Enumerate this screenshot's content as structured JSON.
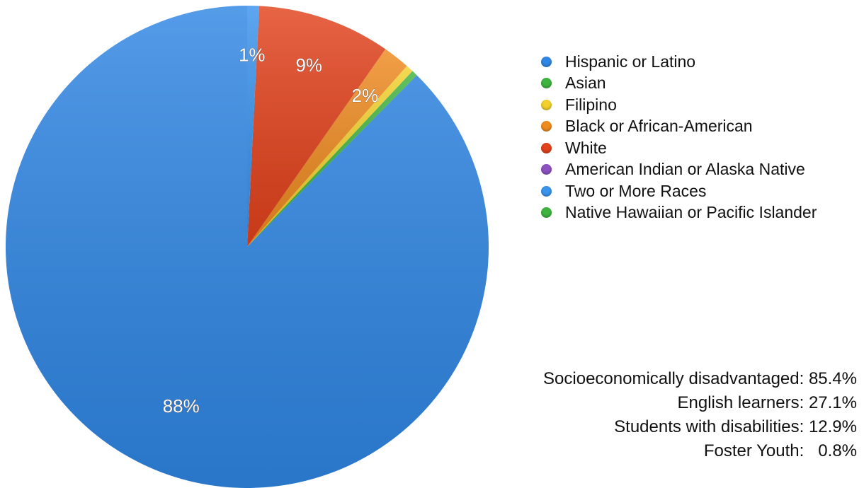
{
  "chart_data": {
    "type": "pie",
    "slices": [
      {
        "name": "Hispanic or Latino",
        "value": 87.6,
        "label": "88%",
        "color": "#2f86e4"
      },
      {
        "name": "Asian",
        "value": 0.4,
        "label": "",
        "color": "#3fb33f"
      },
      {
        "name": "Filipino",
        "value": 0.5,
        "label": "",
        "color": "#f1d02c"
      },
      {
        "name": "Black or African-American",
        "value": 1.8,
        "label": "2%",
        "color": "#ee8a20"
      },
      {
        "name": "White",
        "value": 8.9,
        "label": "9%",
        "color": "#e2421c"
      },
      {
        "name": "American Indian or Alaska Native",
        "value": 0.0,
        "label": "",
        "color": "#8c52c0"
      },
      {
        "name": "Two or More Races",
        "value": 0.8,
        "label": "1%",
        "color": "#3a93ec"
      },
      {
        "name": "Native Hawaiian or Pacific Islander",
        "value": 0.0,
        "label": "",
        "color": "#3fb33f"
      }
    ],
    "legend_position": "right"
  },
  "stats": [
    {
      "text": "Socioeconomically disadvantaged: 85.4%"
    },
    {
      "text": "English learners: 27.1%"
    },
    {
      "text": "Students with disabilities: 12.9%"
    },
    {
      "text": "Foster Youth:   0.8%"
    }
  ]
}
